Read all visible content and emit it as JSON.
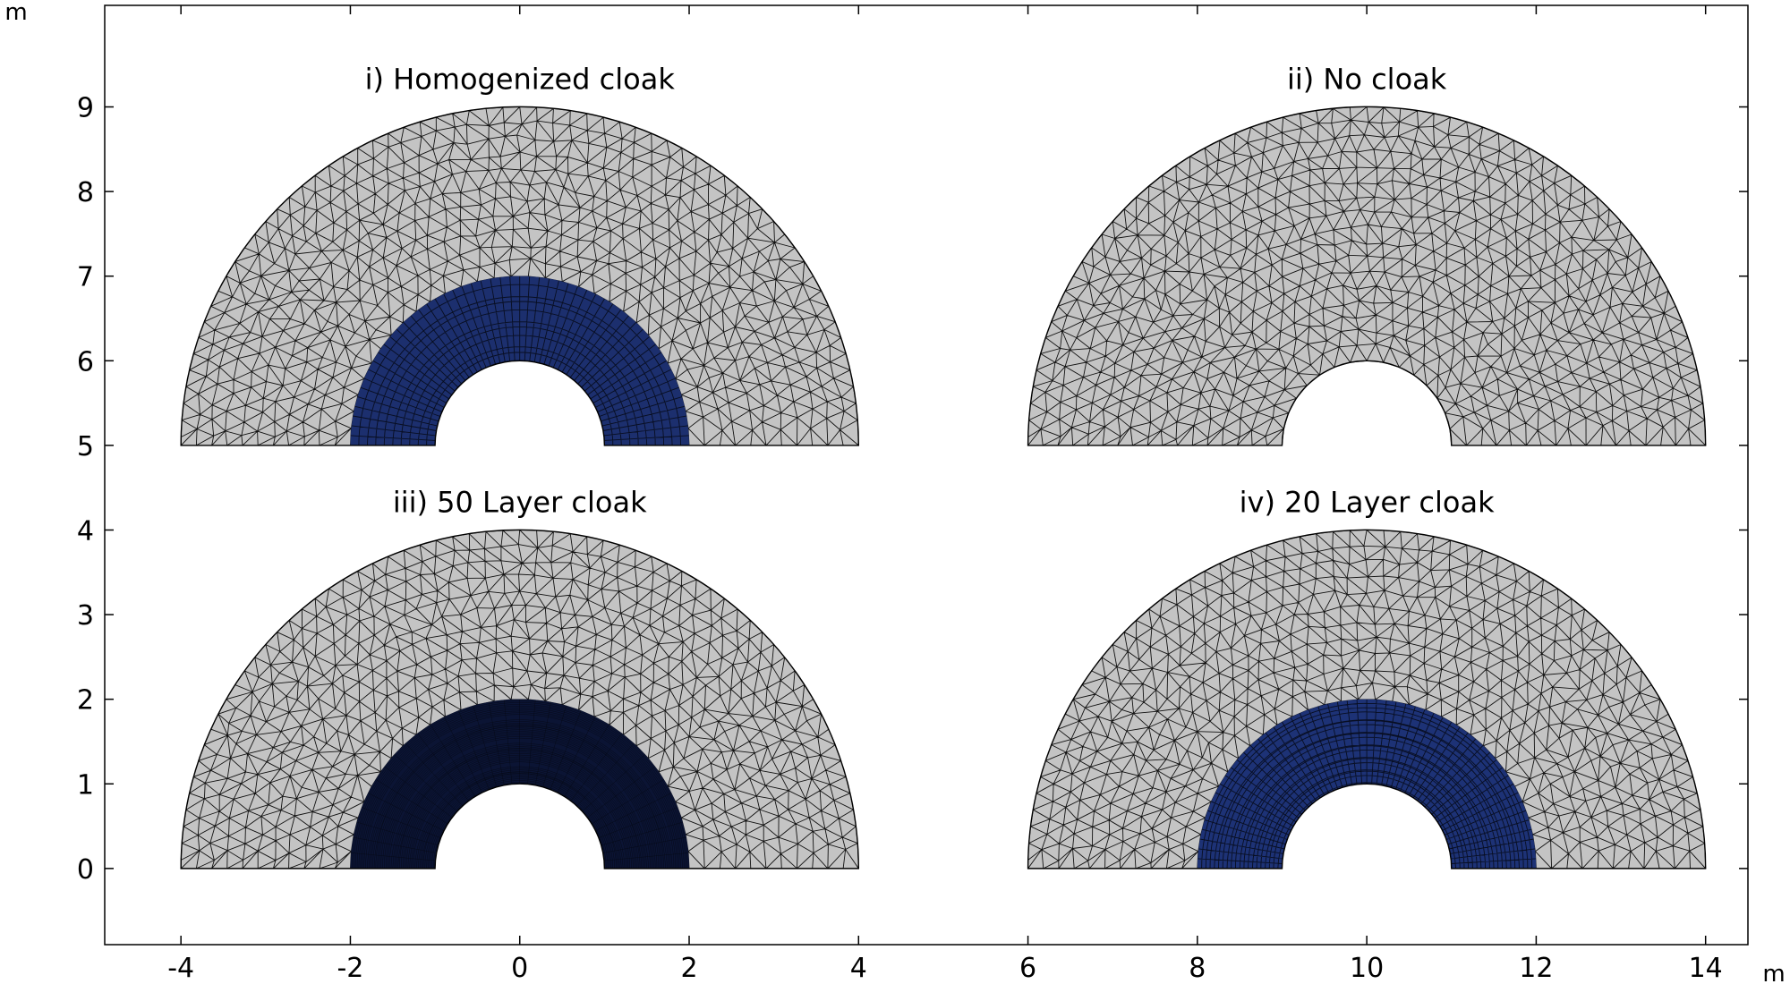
{
  "x_unit": "m",
  "y_unit": "m",
  "x_range": [
    -4.9,
    14.5
  ],
  "y_range": [
    -0.9,
    10.2
  ],
  "x_ticks": [
    "-4",
    "-2",
    "0",
    "2",
    "4",
    "6",
    "8",
    "10",
    "12",
    "14"
  ],
  "y_ticks": [
    "0",
    "1",
    "2",
    "3",
    "4",
    "5",
    "6",
    "7",
    "8",
    "9"
  ],
  "colors": {
    "background_domain": "#c4c4c4",
    "cloak_homogenized": "#1c2f6e",
    "cloak_50_layer": "#0b1434",
    "cloak_20_layer": "#1d3276",
    "mesh_line": "#111111"
  },
  "panels": [
    {
      "title": "i) Homogenized cloak",
      "center": [
        0,
        5
      ],
      "inner_radius": 1,
      "cloak_radius": 2,
      "outer_radius": 4,
      "cloak": "homogenized"
    },
    {
      "title": "ii) No cloak",
      "center": [
        10,
        5
      ],
      "inner_radius": 1,
      "cloak_radius": 2,
      "outer_radius": 4,
      "cloak": "none"
    },
    {
      "title": "iii) 50 Layer cloak",
      "center": [
        0,
        0
      ],
      "inner_radius": 1,
      "cloak_radius": 2,
      "outer_radius": 4,
      "cloak": "50_layer"
    },
    {
      "title": "iv) 20 Layer cloak",
      "center": [
        10,
        0
      ],
      "inner_radius": 1,
      "cloak_radius": 2,
      "outer_radius": 4,
      "cloak": "20_layer"
    }
  ]
}
